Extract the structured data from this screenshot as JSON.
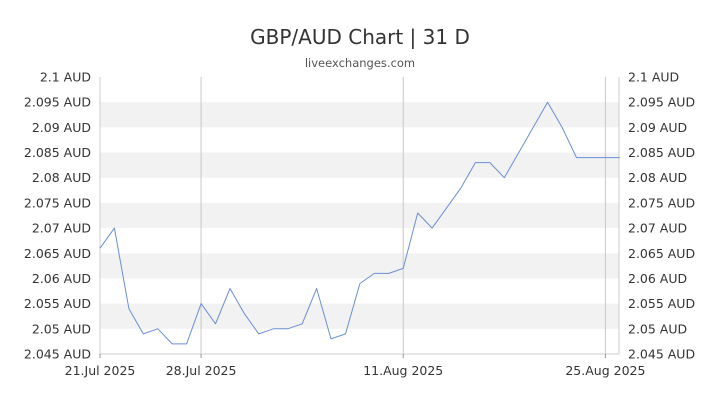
{
  "header": {
    "title": "GBP/AUD Chart | 31 D",
    "subtitle": "liveexchanges.com"
  },
  "chart_data": {
    "type": "line",
    "title": "GBP/AUD Chart | 31 D",
    "subtitle": "liveexchanges.com",
    "xlabel": "",
    "ylabel": "",
    "ylim": [
      2.045,
      2.1
    ],
    "y_ticks": [
      "2.1 AUD",
      "2.095 AUD",
      "2.09 AUD",
      "2.085 AUD",
      "2.08 AUD",
      "2.075 AUD",
      "2.07 AUD",
      "2.065 AUD",
      "2.06 AUD",
      "2.055 AUD",
      "2.05 AUD",
      "2.045 AUD"
    ],
    "x_ticks": [
      "21.Jul 2025",
      "28.Jul 2025",
      "11.Aug 2025",
      "25.Aug 2025"
    ],
    "grid": "alternating horizontal bands",
    "line_color": "#6b8fd6",
    "x": [
      "2025-07-21",
      "2025-07-22",
      "2025-07-23",
      "2025-07-24",
      "2025-07-25",
      "2025-07-26",
      "2025-07-27",
      "2025-07-28",
      "2025-07-29",
      "2025-07-30",
      "2025-07-31",
      "2025-08-01",
      "2025-08-02",
      "2025-08-03",
      "2025-08-04",
      "2025-08-05",
      "2025-08-06",
      "2025-08-07",
      "2025-08-08",
      "2025-08-09",
      "2025-08-10",
      "2025-08-11",
      "2025-08-12",
      "2025-08-13",
      "2025-08-14",
      "2025-08-15",
      "2025-08-16",
      "2025-08-17",
      "2025-08-18",
      "2025-08-19",
      "2025-08-20",
      "2025-08-21",
      "2025-08-22",
      "2025-08-23",
      "2025-08-24",
      "2025-08-25",
      "2025-08-26"
    ],
    "series": [
      {
        "values": [
          2.066,
          2.07,
          2.054,
          2.049,
          2.05,
          2.047,
          2.047,
          2.055,
          2.051,
          2.058,
          2.053,
          2.049,
          2.05,
          2.05,
          2.051,
          2.058,
          2.048,
          2.049,
          2.059,
          2.061,
          2.061,
          2.062,
          2.073,
          2.07,
          2.074,
          2.078,
          2.083,
          2.083,
          2.08,
          2.085,
          2.09,
          2.095,
          2.09,
          2.084,
          2.084,
          2.084,
          2.084
        ]
      }
    ]
  }
}
